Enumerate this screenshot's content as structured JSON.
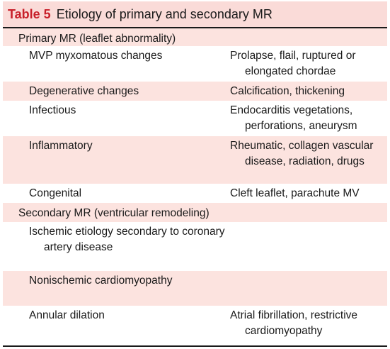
{
  "table": {
    "number": "Table 5",
    "title": "Etiology of primary and secondary MR",
    "rows": [
      {
        "section": "Primary MR (leaflet abnormality)"
      },
      {
        "cause": "MVP myxomatous changes",
        "finding": "Prolapse, flail, ruptured or elongated chordae"
      },
      {
        "cause": "Degenerative changes",
        "finding": "Calcification, thickening"
      },
      {
        "cause": "Infectious",
        "finding": "Endocarditis vegetations, perforations, aneurysm"
      },
      {
        "cause": "Inflammatory",
        "finding": "Rheumatic, collagen vascular disease, radiation, drugs"
      },
      {
        "cause": "Congenital",
        "finding": "Cleft leaflet, parachute MV"
      },
      {
        "section": "Secondary MR (ventricular remodeling)"
      },
      {
        "cause": "Ischemic etiology secondary to coronary artery disease",
        "finding": ""
      },
      {
        "cause": "Nonischemic cardiomyopathy",
        "finding": ""
      },
      {
        "cause": "Annular dilation",
        "finding": "Atrial fibrillation, restrictive cardiomyopathy"
      }
    ]
  },
  "colors": {
    "title_number": "#c8202a",
    "header_fill": "#fadbd8",
    "stripe_fill": "#fce3df",
    "rule": "#1a1a1a"
  }
}
